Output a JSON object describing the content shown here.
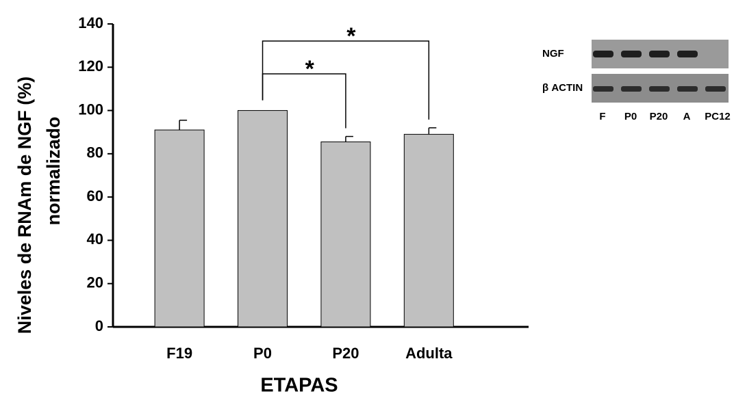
{
  "chart_data": {
    "type": "bar",
    "y_label": [
      "Niveles de RNAm de NGF (%)",
      "normalizado"
    ],
    "x_label": "ETAPAS",
    "categories": [
      "F19",
      "P0",
      "P20",
      "Adulta"
    ],
    "values": [
      91,
      100,
      85.5,
      89
    ],
    "errors": [
      4.5,
      0,
      2.5,
      3
    ],
    "color": "#c0c0c0",
    "ylim": [
      0,
      140
    ],
    "yticks": [
      0,
      20,
      40,
      60,
      80,
      100,
      120,
      140
    ],
    "significance": [
      {
        "from": 1,
        "to": 3,
        "label": "*"
      },
      {
        "from": 1,
        "to": 2,
        "label": "*"
      }
    ]
  },
  "gel": {
    "rows": [
      "NGF",
      "β ACTIN"
    ],
    "lanes": [
      "F",
      "P0",
      "P20",
      "A",
      "PC12"
    ]
  }
}
